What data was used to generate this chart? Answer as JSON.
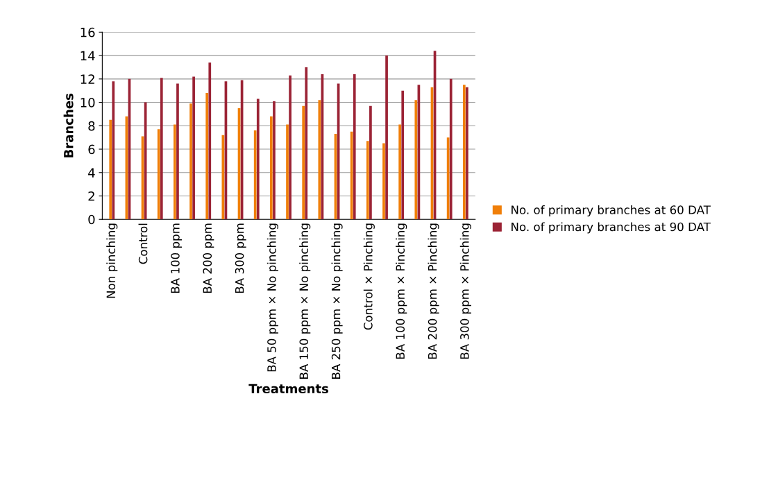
{
  "chart_data": {
    "type": "bar",
    "xlabel": "Treatments",
    "ylabel": "Branches",
    "categories": [
      "Non pinching",
      null,
      "Control",
      null,
      "BA 100 ppm",
      null,
      "BA 200 ppm",
      null,
      "BA 300 ppm",
      null,
      "BA 50 ppm × No pinching",
      null,
      "BA 150 ppm × No pinching",
      null,
      "BA 250 ppm × No pinching",
      null,
      "Control × Pinching",
      null,
      "BA 100 ppm × Pinching",
      null,
      "BA 200 ppm × Pinching",
      null,
      "BA 300 ppm × Pinching"
    ],
    "series": [
      {
        "name": "No. of primary branches at 60 DAT",
        "color": "#f07f09",
        "values": [
          8.5,
          8.8,
          7.1,
          7.7,
          8.1,
          9.9,
          10.8,
          7.2,
          9.5,
          7.6,
          8.8,
          8.1,
          9.7,
          10.2,
          7.3,
          7.5,
          6.7,
          6.5,
          8.1,
          10.2,
          11.3,
          7.0,
          11.5
        ]
      },
      {
        "name": "No. of primary branches at 90 DAT",
        "color": "#9b2335",
        "values": [
          11.8,
          12.0,
          10.0,
          12.1,
          11.6,
          12.2,
          13.4,
          11.8,
          11.9,
          10.3,
          10.1,
          12.3,
          13.0,
          12.4,
          11.6,
          12.4,
          9.7,
          14.0,
          11.0,
          11.5,
          14.4,
          12.0,
          11.3
        ]
      }
    ],
    "ylim": [
      0,
      16
    ],
    "yticks": [
      0,
      2,
      4,
      6,
      8,
      10,
      12,
      14,
      16
    ],
    "grid": "y",
    "legend": "right"
  }
}
